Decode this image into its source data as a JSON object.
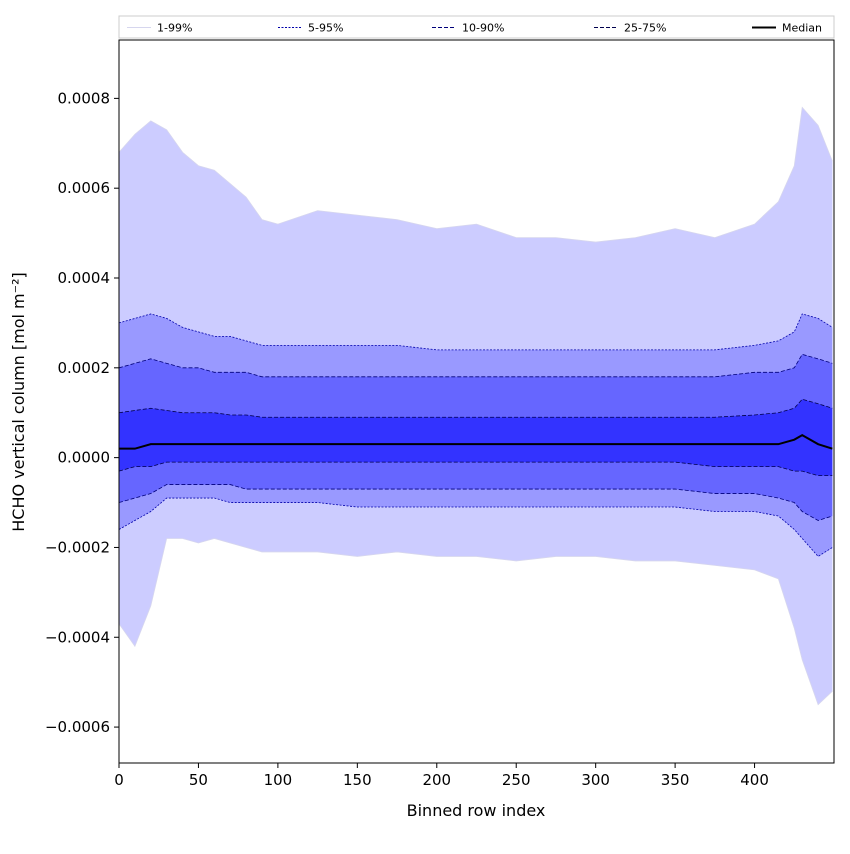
{
  "chart_data": {
    "type": "area",
    "title": "",
    "xlabel": "Binned row index",
    "ylabel": "HCHO vertical column [mol m⁻²]",
    "xlim": [
      0,
      450
    ],
    "ylim": [
      -0.00068,
      0.00093
    ],
    "x_ticks": [
      0,
      50,
      100,
      150,
      200,
      250,
      300,
      350,
      400
    ],
    "x_tick_labels": [
      "0",
      "50",
      "100",
      "150",
      "200",
      "250",
      "300",
      "350",
      "400"
    ],
    "y_ticks": [
      -0.0006,
      -0.0004,
      -0.0002,
      0.0,
      0.0002,
      0.0004,
      0.0006,
      0.0008
    ],
    "y_tick_labels": [
      "−0.0006",
      "−0.0004",
      "−0.0002",
      "0.0000",
      "0.0002",
      "0.0004",
      "0.0006",
      "0.0008"
    ],
    "grid": false,
    "legend_position": "top, spanning full width",
    "x": [
      0,
      10,
      20,
      30,
      40,
      50,
      60,
      70,
      80,
      90,
      100,
      125,
      150,
      175,
      200,
      225,
      250,
      275,
      300,
      325,
      350,
      375,
      400,
      415,
      425,
      430,
      440,
      449
    ],
    "bands": [
      {
        "name": "1-99%",
        "color": "#ccccff",
        "line_color": "#d6d6ee",
        "lower": [
          -0.00037,
          -0.00042,
          -0.00033,
          -0.00018,
          -0.00018,
          -0.00019,
          -0.00018,
          -0.00019,
          -0.0002,
          -0.00021,
          -0.00021,
          -0.00021,
          -0.00022,
          -0.00021,
          -0.00022,
          -0.00022,
          -0.00023,
          -0.00022,
          -0.00022,
          -0.00023,
          -0.00023,
          -0.00024,
          -0.00025,
          -0.00027,
          -0.00038,
          -0.00045,
          -0.00055,
          -0.00052
        ],
        "upper": [
          0.00068,
          0.00072,
          0.00075,
          0.00073,
          0.00068,
          0.00065,
          0.00064,
          0.00061,
          0.00058,
          0.00053,
          0.00052,
          0.00055,
          0.00054,
          0.00053,
          0.00051,
          0.00052,
          0.00049,
          0.00049,
          0.00048,
          0.00049,
          0.00051,
          0.00049,
          0.00052,
          0.00057,
          0.00065,
          0.00078,
          0.00074,
          0.00066
        ]
      },
      {
        "name": "5-95%",
        "color": "#9999ff",
        "line_color": "#0000aa",
        "lower": [
          -0.00016,
          -0.00014,
          -0.00012,
          -9e-05,
          -9e-05,
          -9e-05,
          -9e-05,
          -0.0001,
          -0.0001,
          -0.0001,
          -0.0001,
          -0.0001,
          -0.00011,
          -0.00011,
          -0.00011,
          -0.00011,
          -0.00011,
          -0.00011,
          -0.00011,
          -0.00011,
          -0.00011,
          -0.00012,
          -0.00012,
          -0.00013,
          -0.00016,
          -0.00018,
          -0.00022,
          -0.0002
        ],
        "upper": [
          0.0003,
          0.00031,
          0.00032,
          0.00031,
          0.00029,
          0.00028,
          0.00027,
          0.00027,
          0.00026,
          0.00025,
          0.00025,
          0.00025,
          0.00025,
          0.00025,
          0.00024,
          0.00024,
          0.00024,
          0.00024,
          0.00024,
          0.00024,
          0.00024,
          0.00024,
          0.00025,
          0.00026,
          0.00028,
          0.00032,
          0.00031,
          0.00029
        ]
      },
      {
        "name": "10-90%",
        "color": "#6666ff",
        "line_color": "#00007a",
        "lower": [
          -0.0001,
          -9e-05,
          -8e-05,
          -6e-05,
          -6e-05,
          -6e-05,
          -6e-05,
          -6e-05,
          -7e-05,
          -7e-05,
          -7e-05,
          -7e-05,
          -7e-05,
          -7e-05,
          -7e-05,
          -7e-05,
          -7e-05,
          -7e-05,
          -7e-05,
          -7e-05,
          -7e-05,
          -8e-05,
          -8e-05,
          -9e-05,
          -0.0001,
          -0.00012,
          -0.00014,
          -0.00013
        ],
        "upper": [
          0.0002,
          0.00021,
          0.00022,
          0.00021,
          0.0002,
          0.0002,
          0.00019,
          0.00019,
          0.00019,
          0.00018,
          0.00018,
          0.00018,
          0.00018,
          0.00018,
          0.00018,
          0.00018,
          0.00018,
          0.00018,
          0.00018,
          0.00018,
          0.00018,
          0.00018,
          0.00019,
          0.00019,
          0.0002,
          0.00023,
          0.00022,
          0.00021
        ]
      },
      {
        "name": "25-75%",
        "color": "#3333ff",
        "line_color": "#00004d",
        "lower": [
          -3e-05,
          -2e-05,
          -2e-05,
          -1e-05,
          -1e-05,
          -1e-05,
          -1e-05,
          -1e-05,
          -1e-05,
          -1e-05,
          -1e-05,
          -1e-05,
          -1e-05,
          -1e-05,
          -1e-05,
          -1e-05,
          -1e-05,
          -1e-05,
          -1e-05,
          -1e-05,
          -1e-05,
          -2e-05,
          -2e-05,
          -2e-05,
          -3e-05,
          -3e-05,
          -4e-05,
          -4e-05
        ],
        "upper": [
          0.0001,
          0.000105,
          0.00011,
          0.000105,
          0.0001,
          0.0001,
          0.0001,
          9.5e-05,
          9.5e-05,
          9e-05,
          9e-05,
          9e-05,
          9e-05,
          9e-05,
          9e-05,
          9e-05,
          9e-05,
          9e-05,
          9e-05,
          9e-05,
          9e-05,
          9e-05,
          9.5e-05,
          0.0001,
          0.00011,
          0.00013,
          0.00012,
          0.00011
        ]
      }
    ],
    "series": [
      {
        "name": "Median",
        "color": "#000000",
        "values": [
          2e-05,
          2e-05,
          3e-05,
          3e-05,
          3e-05,
          3e-05,
          3e-05,
          3e-05,
          3e-05,
          3e-05,
          3e-05,
          3e-05,
          3e-05,
          3e-05,
          3e-05,
          3e-05,
          3e-05,
          3e-05,
          3e-05,
          3e-05,
          3e-05,
          3e-05,
          3e-05,
          3e-05,
          4e-05,
          5e-05,
          3e-05,
          2e-05
        ]
      }
    ],
    "legend": [
      "1-99%",
      "5-95%",
      "10-90%",
      "25-75%",
      "Median"
    ]
  }
}
